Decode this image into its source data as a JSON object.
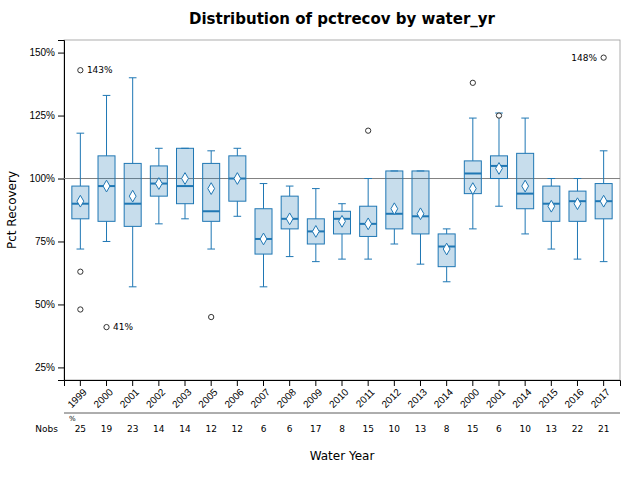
{
  "chart_data": {
    "type": "box",
    "title": "Distribution of pctrecov by water_yr",
    "x_label": "Water Year",
    "y_label": "Pct Recovery",
    "categories": [
      "1999",
      "2000",
      "2001",
      "2002",
      "2003",
      "2005",
      "2006",
      "2007",
      "2008",
      "2009",
      "2010",
      "2011",
      "2012",
      "2013",
      "2014",
      "2000",
      "2001",
      "2014",
      "2015",
      "2016",
      "2017"
    ],
    "boxes": [
      {
        "q1": 84,
        "med": 90,
        "q3": 97,
        "whislo": 72,
        "whishi": 118,
        "mean": 91,
        "outliers": [
          63,
          48,
          143
        ]
      },
      {
        "q1": 83,
        "med": 97,
        "q3": 109,
        "whislo": 75,
        "whishi": 133,
        "mean": 97,
        "outliers": [
          41
        ]
      },
      {
        "q1": 81,
        "med": 90,
        "q3": 106,
        "whislo": 57,
        "whishi": 140,
        "mean": 93,
        "outliers": []
      },
      {
        "q1": 93,
        "med": 98,
        "q3": 105,
        "whislo": 82,
        "whishi": 112,
        "mean": 98,
        "outliers": []
      },
      {
        "q1": 90,
        "med": 97,
        "q3": 112,
        "whislo": 84,
        "whishi": 112,
        "mean": 100,
        "outliers": []
      },
      {
        "q1": 83,
        "med": 87,
        "q3": 106,
        "whislo": 72,
        "whishi": 111,
        "mean": 96,
        "outliers": [
          45
        ]
      },
      {
        "q1": 91,
        "med": 100,
        "q3": 109,
        "whislo": 85,
        "whishi": 112,
        "mean": 100,
        "outliers": []
      },
      {
        "q1": 70,
        "med": 76,
        "q3": 88,
        "whislo": 57,
        "whishi": 98,
        "mean": 76,
        "outliers": []
      },
      {
        "q1": 80,
        "med": 84,
        "q3": 93,
        "whislo": 69,
        "whishi": 97,
        "mean": 84,
        "outliers": []
      },
      {
        "q1": 74,
        "med": 79,
        "q3": 84,
        "whislo": 67,
        "whishi": 96,
        "mean": 79,
        "outliers": []
      },
      {
        "q1": 78,
        "med": 84,
        "q3": 87,
        "whislo": 68,
        "whishi": 90,
        "mean": 83,
        "outliers": []
      },
      {
        "q1": 77,
        "med": 82,
        "q3": 89,
        "whislo": 68,
        "whishi": 100,
        "mean": 82,
        "outliers": [
          119
        ]
      },
      {
        "q1": 80,
        "med": 86,
        "q3": 103,
        "whislo": 74,
        "whishi": 103,
        "mean": 88,
        "outliers": []
      },
      {
        "q1": 78,
        "med": 85,
        "q3": 103,
        "whislo": 66,
        "whishi": 103,
        "mean": 86,
        "outliers": []
      },
      {
        "q1": 65,
        "med": 73,
        "q3": 78,
        "whislo": 59,
        "whishi": 80,
        "mean": 72,
        "outliers": []
      },
      {
        "q1": 94,
        "med": 102,
        "q3": 107,
        "whislo": 80,
        "whishi": 124,
        "mean": 96,
        "outliers": [
          138
        ]
      },
      {
        "q1": 100,
        "med": 105,
        "q3": 109,
        "whislo": 89,
        "whishi": 126,
        "mean": 104,
        "outliers": [
          125
        ]
      },
      {
        "q1": 88,
        "med": 94,
        "q3": 110,
        "whislo": 78,
        "whishi": 124,
        "mean": 97,
        "outliers": []
      },
      {
        "q1": 83,
        "med": 90,
        "q3": 97,
        "whislo": 72,
        "whishi": 100,
        "mean": 89,
        "outliers": []
      },
      {
        "q1": 83,
        "med": 91,
        "q3": 95,
        "whislo": 68,
        "whishi": 100,
        "mean": 90,
        "outliers": []
      },
      {
        "q1": 84,
        "med": 91,
        "q3": 98,
        "whislo": 67,
        "whishi": 111,
        "mean": 91,
        "outliers": [
          148
        ]
      }
    ],
    "nobs_label": "Nobs",
    "nobs": [
      25,
      19,
      23,
      14,
      14,
      12,
      12,
      6,
      6,
      17,
      8,
      15,
      10,
      13,
      8,
      15,
      6,
      10,
      13,
      22,
      21
    ],
    "nobs_unit": "%",
    "ref_line": 100,
    "ylim": [
      20,
      155
    ],
    "yticks": [
      {
        "value": 25,
        "label": "25%"
      },
      {
        "value": 50,
        "label": "50%"
      },
      {
        "value": 75,
        "label": "75%"
      },
      {
        "value": 100,
        "label": "100%"
      },
      {
        "value": 125,
        "label": "125%"
      },
      {
        "value": 150,
        "label": "150%"
      }
    ],
    "annotations": [
      {
        "category_index": 0,
        "value": 143,
        "text": "143%",
        "side": "right"
      },
      {
        "category_index": 1,
        "value": 41,
        "text": "41%",
        "side": "right"
      },
      {
        "category_index": 20,
        "value": 148,
        "text": "148%",
        "side": "left"
      }
    ],
    "grid": false
  }
}
